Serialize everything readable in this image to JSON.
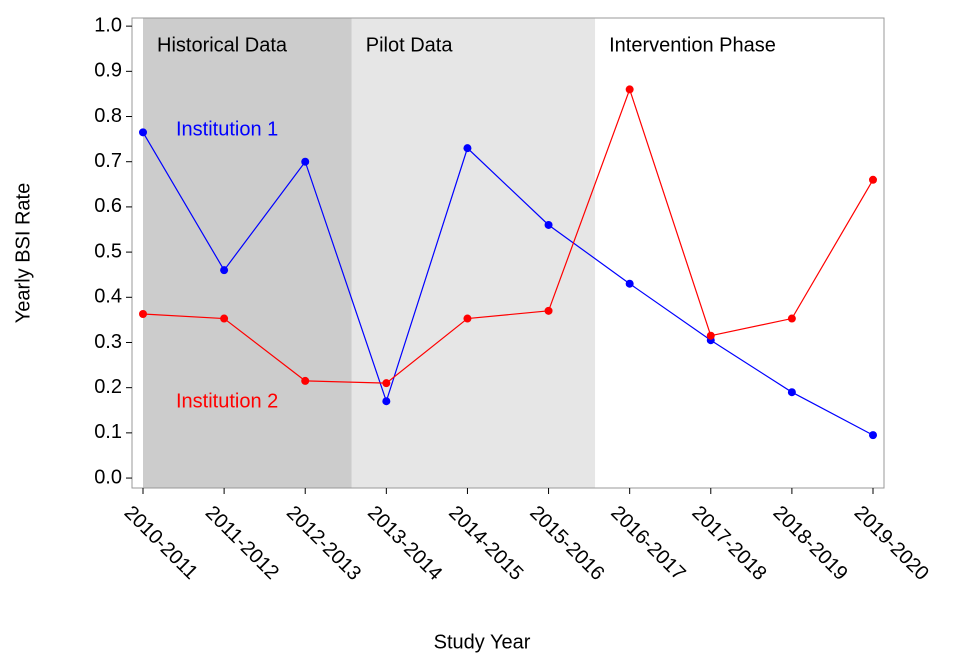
{
  "chart_data": {
    "type": "line",
    "x_label": "Study Year",
    "y_label": "Yearly BSI Rate",
    "categories": [
      "2010-2011",
      "2011-2012",
      "2012-2013",
      "2013-2014",
      "2014-2015",
      "2015-2016",
      "2016-2017",
      "2017-2018",
      "2018-2019",
      "2019-2020"
    ],
    "series": [
      {
        "name": "Institution 1",
        "color": "#0000ff",
        "values": [
          0.765,
          0.46,
          0.7,
          0.17,
          0.73,
          0.56,
          0.43,
          0.305,
          0.19,
          0.095
        ]
      },
      {
        "name": "Institution 2",
        "color": "#ff0000",
        "values": [
          0.363,
          0.353,
          0.215,
          0.21,
          0.353,
          0.37,
          0.86,
          0.315,
          0.353,
          0.66
        ]
      }
    ],
    "ylim": [
      -0.022,
      1.018
    ],
    "yticks": [
      {
        "value": 0,
        "label": "0.0"
      },
      0.1,
      0.2,
      0.3,
      0.4,
      0.5,
      0.6,
      0.7,
      0.8,
      0.9,
      {
        "value": 1,
        "label": "1.0"
      }
    ],
    "regions": [
      {
        "label": "Historical Data",
        "from": "2010-2011",
        "to": "2012-2013",
        "color": "#cccccc"
      },
      {
        "label": "Pilot Data",
        "from": "2013-2014",
        "to": "2015-2016",
        "color": "#e6e6e6"
      },
      {
        "label": "Intervention Phase",
        "from": "2016-2017",
        "to": "2019-2020",
        "color": "#ffffff"
      }
    ]
  }
}
